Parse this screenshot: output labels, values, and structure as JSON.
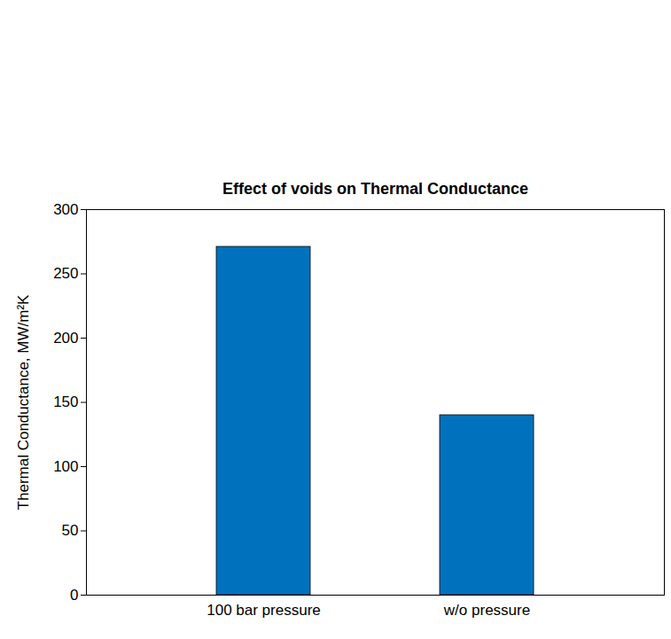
{
  "chart_data": {
    "type": "bar",
    "title": "Effect of voids on Thermal Conductance",
    "categories": [
      "100 bar pressure",
      "w/o pressure"
    ],
    "values": [
      271,
      140
    ],
    "color": "#0072bd",
    "ylabel": "Thermal Conductance, MW/m²K",
    "ylim": [
      0,
      300
    ],
    "yticks": [
      0,
      50,
      100,
      150,
      200,
      250,
      300
    ],
    "grid": false
  }
}
